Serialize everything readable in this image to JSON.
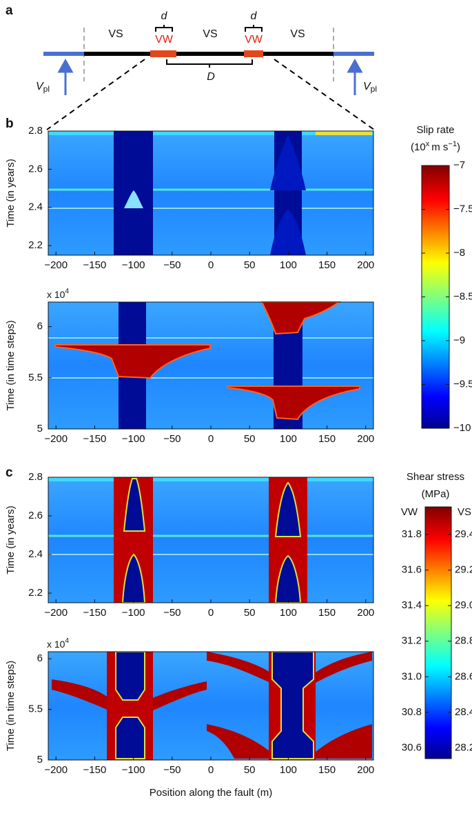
{
  "panel_a": {
    "label": "a",
    "regions": [
      "VS",
      "VW",
      "VS",
      "VW",
      "VS"
    ],
    "d_labels": [
      "d",
      "d"
    ],
    "D": "D",
    "vpl": [
      {
        "main": "V",
        "sub": "pl"
      },
      {
        "main": "V",
        "sub": "pl"
      }
    ]
  },
  "x_axis": {
    "label": "Position along the fault (m)",
    "xlim": [
      -210,
      210
    ],
    "xticks": [
      {
        "value": -200,
        "label": "−200"
      },
      {
        "value": -150,
        "label": "−150"
      },
      {
        "value": -100,
        "label": "−100"
      },
      {
        "value": -50,
        "label": "−50"
      },
      0,
      50,
      100,
      150,
      200
    ]
  },
  "panel_b": {
    "label": "b",
    "plots": [
      {
        "ylabel": "Time (in years)",
        "ylim": [
          2.15,
          2.8
        ],
        "yticks": [
          2.2,
          2.4,
          2.6,
          2.8
        ]
      },
      {
        "ylabel": "Time (in time steps)",
        "multiplier": {
          "base": "x 10",
          "exp": "4"
        },
        "ylim": [
          5,
          6.24
        ],
        "yticks": [
          5,
          5.5,
          6
        ]
      }
    ],
    "colorbar": {
      "title": "Slip rate",
      "units": [
        "(10",
        "x",
        "m s",
        "−1",
        ")"
      ],
      "ylim": [
        -10,
        -7
      ],
      "ticks": [
        {
          "value": -7,
          "label": "−7"
        },
        {
          "value": -7.5,
          "label": "−7.5"
        },
        {
          "value": -8,
          "label": "−8"
        },
        {
          "value": -8.5,
          "label": "−8.5"
        },
        {
          "value": -9,
          "label": "−9"
        },
        {
          "value": -9.5,
          "label": "−9.5"
        },
        {
          "value": -10,
          "label": "−10"
        }
      ]
    }
  },
  "panel_c": {
    "label": "c",
    "plots": [
      {
        "ylabel": "Time (in years)",
        "ylim": [
          2.15,
          2.8
        ],
        "yticks": [
          2.2,
          2.4,
          2.6,
          2.8
        ]
      },
      {
        "ylabel": "Time (in time steps)",
        "multiplier": {
          "base": "x 10",
          "exp": "4"
        },
        "ylim": [
          5,
          6.07
        ],
        "yticks": [
          5,
          5.5,
          6
        ]
      }
    ],
    "colorbar": {
      "title": "Shear stress",
      "units": "(MPa)",
      "scales": [
        {
          "name": "VW",
          "ylim": [
            30.54,
            31.955
          ],
          "ticks": [
            31.8,
            31.6,
            31.4,
            31.2,
            {
              "value": 31,
              "label": "31.0"
            },
            30.8,
            30.6
          ]
        },
        {
          "name": "VS",
          "ylim": [
            28.14,
            29.555
          ],
          "ticks": [
            29.4,
            29.2,
            {
              "value": 29,
              "label": "29.0"
            },
            28.8,
            28.6,
            28.4,
            28.2
          ]
        }
      ]
    }
  }
}
